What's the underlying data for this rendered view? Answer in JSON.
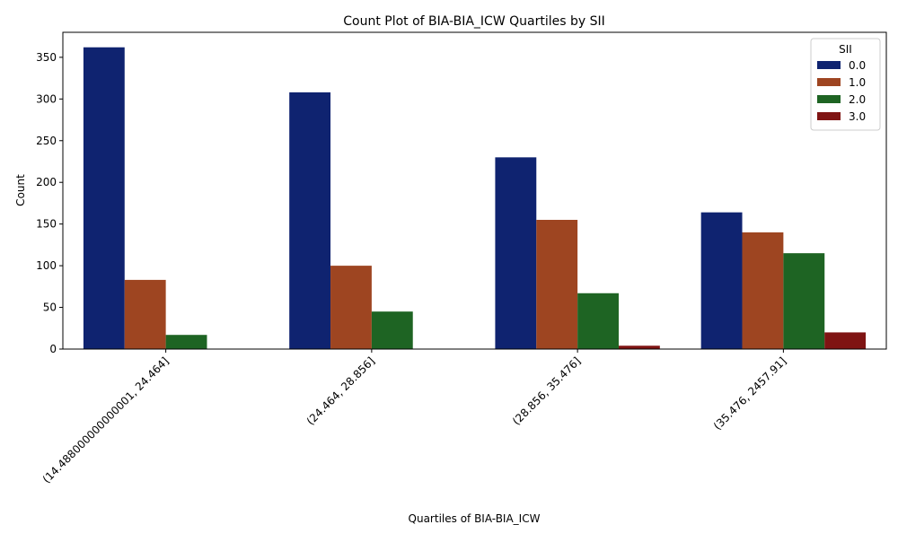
{
  "chart_data": {
    "type": "bar",
    "title": "Count Plot of BIA-BIA_ICW Quartiles by SII",
    "xlabel": "Quartiles of BIA-BIA_ICW",
    "ylabel": "Count",
    "categories": [
      "(14.488000000000001, 24.464]",
      "(24.464, 28.856]",
      "(28.856, 35.476]",
      "(35.476, 2457.91]"
    ],
    "series": [
      {
        "name": "0.0",
        "color": "#0f2370",
        "values": [
          362,
          308,
          230,
          164
        ]
      },
      {
        "name": "1.0",
        "color": "#9e4521",
        "values": [
          83,
          100,
          155,
          140
        ]
      },
      {
        "name": "2.0",
        "color": "#1e6423",
        "values": [
          17,
          45,
          67,
          115
        ]
      },
      {
        "name": "3.0",
        "color": "#7f1413",
        "values": [
          0,
          0,
          4,
          20
        ]
      }
    ],
    "ylim": [
      0,
      380
    ],
    "yticks": [
      0,
      50,
      100,
      150,
      200,
      250,
      300,
      350
    ],
    "legend": {
      "title": "SII",
      "position": "top-right"
    },
    "grid": false
  }
}
